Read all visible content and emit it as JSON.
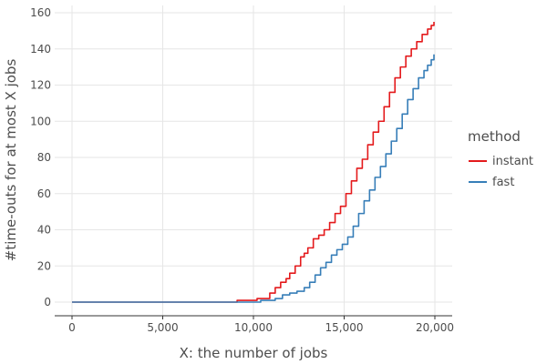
{
  "chart_data": {
    "type": "line",
    "xlabel": "X: the number of jobs",
    "ylabel": "#time-outs for at most X jobs",
    "xlim": [
      0,
      20000
    ],
    "ylim": [
      0,
      160
    ],
    "x_ticks": [
      0,
      5000,
      10000,
      15000,
      20000
    ],
    "x_tick_labels": [
      "0",
      "5,000",
      "10,000",
      "15,000",
      "20,000"
    ],
    "y_ticks": [
      0,
      20,
      40,
      60,
      80,
      100,
      120,
      140,
      160
    ],
    "y_tick_labels": [
      "0",
      "20",
      "40",
      "60",
      "80",
      "100",
      "120",
      "140",
      "160"
    ],
    "grid": true,
    "legend": {
      "title": "method",
      "position": "right"
    },
    "series": [
      {
        "name": "instant",
        "color": "#e41a1c",
        "x": [
          0,
          9000,
          9100,
          10000,
          10200,
          10600,
          10900,
          11200,
          11500,
          11800,
          12000,
          12300,
          12600,
          12800,
          13000,
          13300,
          13600,
          13900,
          14200,
          14500,
          14800,
          15100,
          15400,
          15700,
          16000,
          16300,
          16600,
          16900,
          17200,
          17500,
          17800,
          18100,
          18400,
          18700,
          19000,
          19300,
          19600,
          19800,
          19950
        ],
        "y": [
          0,
          0,
          1,
          1,
          2,
          2,
          5,
          8,
          11,
          13,
          16,
          20,
          25,
          27,
          30,
          35,
          37,
          40,
          44,
          49,
          53,
          60,
          67,
          74,
          79,
          87,
          94,
          100,
          108,
          116,
          124,
          130,
          136,
          140,
          144,
          148,
          151,
          153,
          155
        ]
      },
      {
        "name": "fast",
        "color": "#377eb8",
        "x": [
          0,
          9900,
          10000,
          10400,
          10800,
          11200,
          11600,
          12000,
          12400,
          12800,
          13100,
          13400,
          13700,
          14000,
          14300,
          14600,
          14900,
          15200,
          15500,
          15800,
          16100,
          16400,
          16700,
          17000,
          17300,
          17600,
          17900,
          18200,
          18500,
          18800,
          19100,
          19400,
          19600,
          19800,
          19950
        ],
        "y": [
          0,
          0,
          0,
          1,
          1,
          2,
          4,
          5,
          6,
          8,
          11,
          15,
          19,
          22,
          26,
          29,
          32,
          36,
          42,
          49,
          56,
          62,
          69,
          75,
          82,
          89,
          96,
          104,
          112,
          118,
          124,
          128,
          131,
          134,
          137
        ]
      }
    ]
  }
}
